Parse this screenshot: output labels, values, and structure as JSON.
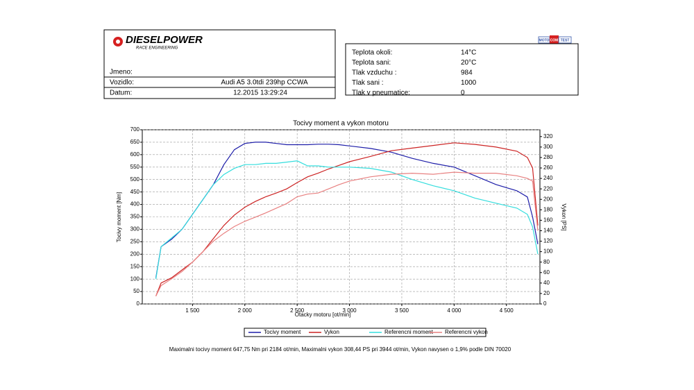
{
  "header": {
    "brand": "DIESELPOWER",
    "tagline": "RACE ENGINEERING",
    "badge": [
      "MOTO",
      "COM",
      "TEST"
    ]
  },
  "vehicle": [
    {
      "label": "Jmeno:"
    },
    {
      "label": "Vozidlo:",
      "value": "Audi A5 3.0tdi 239hp CCWA"
    },
    {
      "label": "Datum:",
      "value": "12.2015 13:29:24"
    }
  ],
  "conditions": [
    {
      "label": "Teplota okoli:",
      "value": "14°C"
    },
    {
      "label": "Teplota sani:",
      "value": "20°C"
    },
    {
      "label": "Tlak vzduchu :",
      "value": "984"
    },
    {
      "label": "Tlak sani :",
      "value": "1000"
    },
    {
      "label": "Tlak v pneumatice:",
      "value": "0"
    }
  ],
  "chart_data": {
    "type": "line",
    "title": "Tocivy moment a vykon motoru",
    "xlabel": "Otacky motoru [ot/min]",
    "ylabel": "Tocivy moment [Nm]",
    "y2label": "Vykon [PS]",
    "x": [
      1150,
      1200,
      1300,
      1400,
      1500,
      1600,
      1700,
      1800,
      1900,
      2000,
      2100,
      2200,
      2300,
      2400,
      2500,
      2600,
      2700,
      2800,
      2900,
      3000,
      3200,
      3400,
      3600,
      3800,
      4000,
      4200,
      4400,
      4600,
      4700,
      4750,
      4800
    ],
    "series": [
      {
        "name": "Tocivy moment",
        "color": "#1c1ca8",
        "values": [
          105,
          230,
          260,
          300,
          360,
          420,
          480,
          560,
          620,
          645,
          650,
          650,
          645,
          640,
          640,
          640,
          642,
          642,
          640,
          635,
          625,
          610,
          585,
          565,
          550,
          515,
          480,
          455,
          430,
          350,
          240
        ]
      },
      {
        "name": "Vykon",
        "color": "#cc2222",
        "axis": "y2",
        "values": [
          15,
          40,
          50,
          65,
          80,
          100,
          125,
          150,
          170,
          185,
          196,
          205,
          212,
          220,
          232,
          243,
          250,
          258,
          265,
          272,
          282,
          293,
          298,
          303,
          308,
          305,
          300,
          292,
          280,
          260,
          150
        ]
      },
      {
        "name": "Referencni moment",
        "color": "#33dddd",
        "values": [
          100,
          230,
          265,
          300,
          360,
          420,
          480,
          520,
          545,
          560,
          560,
          565,
          565,
          570,
          575,
          555,
          555,
          550,
          550,
          550,
          545,
          530,
          500,
          475,
          455,
          425,
          405,
          385,
          360,
          310,
          200
        ]
      },
      {
        "name": "Referencni vykon",
        "color": "#e88080",
        "axis": "y2",
        "values": [
          15,
          35,
          48,
          62,
          80,
          100,
          120,
          135,
          148,
          158,
          166,
          174,
          183,
          192,
          205,
          210,
          212,
          220,
          228,
          235,
          243,
          248,
          250,
          248,
          252,
          250,
          250,
          245,
          240,
          235,
          140
        ]
      }
    ],
    "xlim": [
      1020,
      4820
    ],
    "xticks": [
      {
        "value": 1500,
        "label": "1 500"
      },
      {
        "value": 2000,
        "label": "2 000"
      },
      {
        "value": 2500,
        "label": "2 500"
      },
      {
        "value": 3000,
        "label": "3 000"
      },
      {
        "value": 3500,
        "label": "3 500"
      },
      {
        "value": 4000,
        "label": "4 000"
      },
      {
        "value": 4500,
        "label": "4 500"
      }
    ],
    "ylim": [
      0,
      700
    ],
    "yticks": [
      0,
      50,
      100,
      150,
      200,
      250,
      300,
      350,
      400,
      450,
      500,
      550,
      600,
      650,
      700
    ],
    "y2lim": [
      0,
      333
    ],
    "y2ticks": [
      0,
      20,
      40,
      60,
      80,
      100,
      120,
      140,
      160,
      180,
      200,
      220,
      240,
      260,
      280,
      300,
      320
    ],
    "grid": true,
    "legend": "bottom"
  },
  "footer": "Maximalni tocivy moment 647,75 Nm pri 2184 ot/min,  Maximalni vykon 308,44 PS pri 3944 ot/min,  Vykon navysen o 1,9% podle DIN 70020"
}
